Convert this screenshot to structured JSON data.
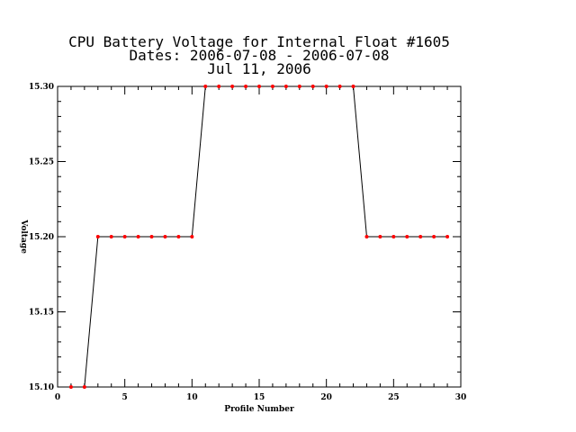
{
  "chart_data": {
    "type": "line",
    "title_lines": [
      "CPU Battery Voltage for Internal Float #1605",
      "Dates:  2006-07-08 -  2006-07-08",
      "Jul 11, 2006"
    ],
    "xlabel": "Profile Number",
    "ylabel": "Voltage",
    "xlim": [
      0,
      30
    ],
    "ylim": [
      15.1,
      15.3
    ],
    "x_ticks": [
      0,
      5,
      10,
      15,
      20,
      25,
      30
    ],
    "x_tick_labels": [
      "0",
      "5",
      "10",
      "15",
      "20",
      "25",
      "30"
    ],
    "y_ticks": [
      15.1,
      15.15,
      15.2,
      15.25,
      15.3
    ],
    "y_tick_labels": [
      "15.10",
      "15.15",
      "15.20",
      "15.25",
      "15.30"
    ],
    "grid": false,
    "line_color": "#000000",
    "marker_color": "#ff0000",
    "x": [
      1,
      2,
      3,
      4,
      5,
      6,
      7,
      8,
      9,
      10,
      11,
      12,
      13,
      14,
      15,
      16,
      17,
      18,
      19,
      20,
      21,
      22,
      23,
      24,
      25,
      26,
      27,
      28,
      29
    ],
    "y": [
      15.1,
      15.1,
      15.2,
      15.2,
      15.2,
      15.2,
      15.2,
      15.2,
      15.2,
      15.2,
      15.3,
      15.3,
      15.3,
      15.3,
      15.3,
      15.3,
      15.3,
      15.3,
      15.3,
      15.3,
      15.3,
      15.3,
      15.2,
      15.2,
      15.2,
      15.2,
      15.2,
      15.2,
      15.2
    ]
  }
}
